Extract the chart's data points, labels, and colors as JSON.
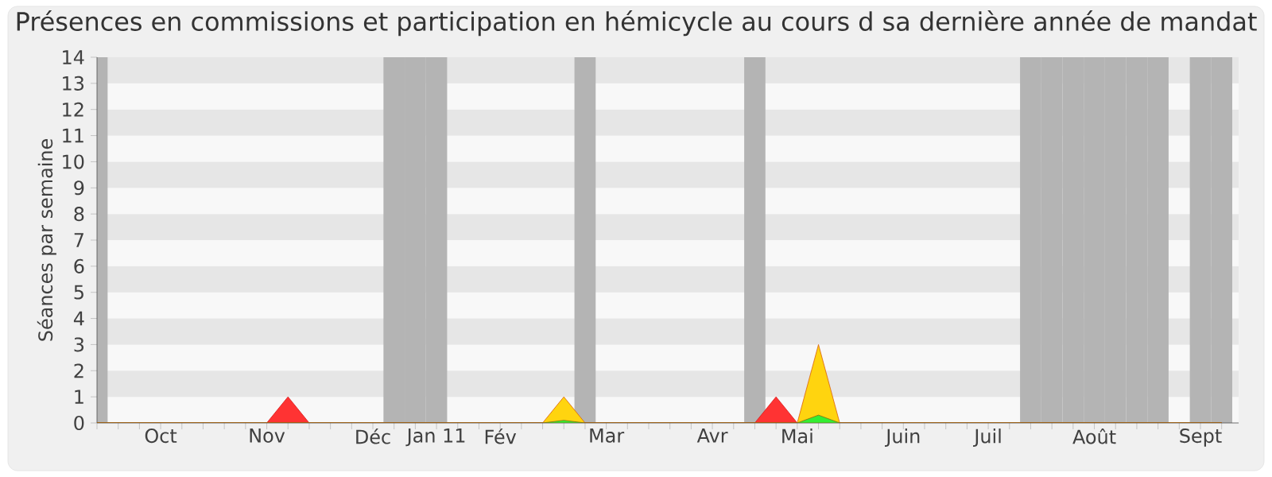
{
  "chart_data": {
    "type": "area",
    "title": "Présences en commissions et participation en hémicycle au cours d sa dernière année de mandat",
    "ylabel": "Séances par semaine",
    "categories": [
      null,
      null,
      null,
      "Oct",
      null,
      null,
      null,
      null,
      "Nov",
      null,
      null,
      null,
      null,
      "Déc",
      null,
      null,
      "Jan 11",
      null,
      null,
      "Fév",
      null,
      null,
      null,
      null,
      "Mar",
      null,
      null,
      null,
      null,
      "Avr",
      null,
      null,
      null,
      "Mai",
      null,
      null,
      null,
      null,
      "Juin",
      null,
      null,
      null,
      "Juil",
      null,
      null,
      null,
      null,
      "Août",
      null,
      null,
      null,
      null,
      "Sept",
      null
    ],
    "series": [
      {
        "color": "#ff3333",
        "values": [
          0,
          0,
          0,
          0,
          0,
          0,
          0,
          0,
          0,
          1,
          0,
          0,
          0,
          0,
          0,
          0,
          0,
          0,
          0,
          0,
          0,
          0,
          0,
          0,
          0,
          0,
          0,
          0,
          0,
          0,
          0,
          0,
          1,
          0,
          0,
          0,
          0,
          0,
          0,
          0,
          0,
          0,
          0,
          0,
          0,
          0,
          0,
          0,
          0,
          0,
          0,
          0,
          0,
          0
        ]
      },
      {
        "color": "#ffd40f",
        "values": [
          0,
          0,
          0,
          0,
          0,
          0,
          0,
          0,
          0,
          0,
          0,
          0,
          0,
          0,
          0,
          0,
          0,
          0,
          0,
          0,
          0,
          0,
          1,
          0,
          0,
          0,
          0,
          0,
          0,
          0,
          0,
          0,
          0,
          0,
          3,
          0,
          0,
          0,
          0,
          0,
          0,
          0,
          0,
          0,
          0,
          0,
          0,
          0,
          0,
          0,
          0,
          0,
          0,
          0
        ]
      },
      {
        "color": "#33ee33",
        "values": [
          0,
          0,
          0,
          0,
          0,
          0,
          0,
          0,
          0,
          0,
          0,
          0,
          0,
          0,
          0,
          0,
          0,
          0,
          0,
          0,
          0,
          0,
          0.1,
          0,
          0,
          0,
          0,
          0,
          0,
          0,
          0,
          0,
          0,
          0,
          0.3,
          0,
          0,
          0,
          0,
          0,
          0,
          0,
          0,
          0,
          0,
          0,
          0,
          0,
          0,
          0,
          0,
          0,
          0,
          0
        ]
      }
    ],
    "yticks": [
      0,
      1,
      2,
      3,
      4,
      5,
      6,
      7,
      8,
      9,
      10,
      11,
      12,
      13,
      14
    ],
    "ylim": [
      0,
      14
    ]
  }
}
